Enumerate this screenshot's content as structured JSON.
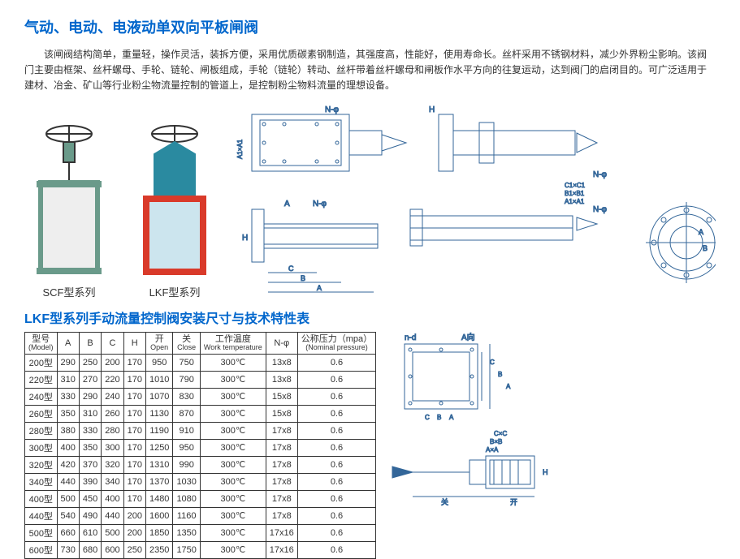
{
  "title": "气动、电动、电液动单双向平板闸阀",
  "description": "该闸阀结构简单，重量轻，操作灵活，装拆方便，采用优质碳素钢制造，其强度高，性能好，使用寿命长。丝杆采用不锈钢材料，减少外界粉尘影响。该阀门主要由框架、丝杆螺母、手轮、链轮、闸板组成，手轮（链轮）转动、丝杆带着丝杆螺母和闸板作水平方向的往复运动，达到阀门的启闭目的。可广泛适用于建材、冶金、矿山等行业粉尘物流量控制的管道上，是控制粉尘物料流量的理想设备。",
  "products": {
    "scf_label": "SCF型系列",
    "lkf_label": "LKF型系列",
    "scf_colors": {
      "frame": "#6a9a8a",
      "wheel": "#333333",
      "plate": "#eeeeee"
    },
    "lkf_colors": {
      "frame": "#2a8aa0",
      "wheel": "#333333",
      "plate": "#d93a2a",
      "inner": "#cce5ee"
    }
  },
  "diagrams": {
    "labels": {
      "nphi": "N-φ",
      "A": "A",
      "B": "B",
      "C": "C",
      "H": "H",
      "A1A1": "A1×A1",
      "B1B1": "B1×B1",
      "C1C1": "C1×C1",
      "nd": "n-d",
      "Adir": "A向",
      "CxC": "C×C",
      "BxB": "B×B",
      "AxA": "A×A",
      "open": "开",
      "close": "关"
    },
    "line_color": "#336699",
    "line_width": 1
  },
  "section_title": "LKF型系列手动流量控制阀安装尺寸与技术特性表",
  "table": {
    "headers": [
      {
        "top": "型号",
        "sub": "(Model)"
      },
      {
        "top": "A",
        "sub": ""
      },
      {
        "top": "B",
        "sub": ""
      },
      {
        "top": "C",
        "sub": ""
      },
      {
        "top": "H",
        "sub": ""
      },
      {
        "top": "开",
        "sub": "Open"
      },
      {
        "top": "关",
        "sub": "Close"
      },
      {
        "top": "工作温度",
        "sub": "Work temperature"
      },
      {
        "top": "N-φ",
        "sub": ""
      },
      {
        "top": "公称压力（mpa）",
        "sub": "(Nominal pressure)"
      }
    ],
    "rows": [
      [
        "200型",
        "290",
        "250",
        "200",
        "170",
        "950",
        "750",
        "300℃",
        "13x8",
        "0.6"
      ],
      [
        "220型",
        "310",
        "270",
        "220",
        "170",
        "1010",
        "790",
        "300℃",
        "13x8",
        "0.6"
      ],
      [
        "240型",
        "330",
        "290",
        "240",
        "170",
        "1070",
        "830",
        "300℃",
        "15x8",
        "0.6"
      ],
      [
        "260型",
        "350",
        "310",
        "260",
        "170",
        "1130",
        "870",
        "300℃",
        "15x8",
        "0.6"
      ],
      [
        "280型",
        "380",
        "330",
        "280",
        "170",
        "1190",
        "910",
        "300℃",
        "17x8",
        "0.6"
      ],
      [
        "300型",
        "400",
        "350",
        "300",
        "170",
        "1250",
        "950",
        "300℃",
        "17x8",
        "0.6"
      ],
      [
        "320型",
        "420",
        "370",
        "320",
        "170",
        "1310",
        "990",
        "300℃",
        "17x8",
        "0.6"
      ],
      [
        "340型",
        "440",
        "390",
        "340",
        "170",
        "1370",
        "1030",
        "300℃",
        "17x8",
        "0.6"
      ],
      [
        "400型",
        "500",
        "450",
        "400",
        "170",
        "1480",
        "1080",
        "300℃",
        "17x8",
        "0.6"
      ],
      [
        "440型",
        "540",
        "490",
        "440",
        "200",
        "1600",
        "1160",
        "300℃",
        "17x8",
        "0.6"
      ],
      [
        "500型",
        "660",
        "610",
        "500",
        "200",
        "1850",
        "1350",
        "300℃",
        "17x16",
        "0.6"
      ],
      [
        "600型",
        "730",
        "680",
        "600",
        "250",
        "2350",
        "1750",
        "300℃",
        "17x16",
        "0.6"
      ]
    ]
  }
}
